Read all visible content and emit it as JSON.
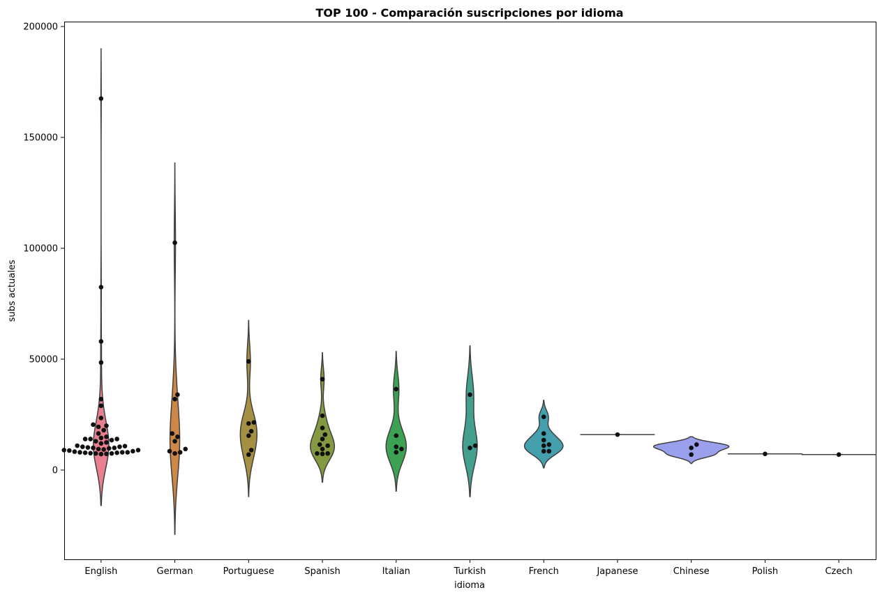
{
  "chart_data": {
    "type": "violin",
    "title": "TOP 100 - Comparación suscripciones por idioma",
    "xlabel": "idioma",
    "ylabel": "subs actuales",
    "ylim": [
      -41000,
      200500
    ],
    "yticks": [
      0,
      50000,
      100000,
      150000,
      200000
    ],
    "yticks_labels": [
      "0",
      "50000",
      "100000",
      "150000",
      "200000"
    ],
    "grid": false,
    "categories": [
      "English",
      "German",
      "Portuguese",
      "Spanish",
      "Italian",
      "Turkish",
      "French",
      "Japanese",
      "Chinese",
      "Polish",
      "Czech"
    ],
    "colors": [
      "#e8808f",
      "#cd8747",
      "#a58f42",
      "#849a42",
      "#3da153",
      "#44a08e",
      "#45a0ae",
      "#4e9fd0",
      "#9ba0ec",
      "#dd8ee4",
      "#e684bb"
    ],
    "violin_range": [
      [
        -16000,
        190000
      ],
      [
        -29000,
        138500
      ],
      [
        -12000,
        67500
      ],
      [
        -5500,
        53000
      ],
      [
        -9500,
        53500
      ],
      [
        -12000,
        56000
      ],
      [
        1000,
        31500
      ],
      [
        16000,
        16000
      ],
      [
        3000,
        15000
      ],
      [
        7300,
        7300
      ],
      [
        7000,
        7000
      ]
    ],
    "values": [
      [
        167500,
        82500,
        58000,
        48500,
        32000,
        29000,
        23500,
        20500,
        20000,
        19500,
        18000,
        16500,
        15000,
        14500,
        14000,
        14000,
        14000,
        13500,
        13000,
        12500,
        12000,
        11000,
        10800,
        10500,
        10500,
        10200,
        10000,
        10000,
        9800,
        9500,
        9300,
        9000,
        9000,
        8800,
        8500,
        8300,
        8000,
        8000,
        8000,
        7800,
        7800,
        7600,
        7500,
        7500,
        7300,
        7200
      ],
      [
        102500,
        34000,
        32000,
        16500,
        15000,
        13000,
        9500,
        8500,
        8000,
        7500
      ],
      [
        49000,
        21500,
        21000,
        17500,
        15500,
        9000,
        7000
      ],
      [
        41000,
        24500,
        19000,
        16000,
        14000,
        11500,
        11000,
        9500,
        7500,
        7500,
        7300
      ],
      [
        36500,
        15500,
        10500,
        9500,
        8000
      ],
      [
        34000,
        11000,
        10000
      ],
      [
        24000,
        16500,
        13500,
        11500,
        11000,
        8500,
        8500
      ],
      [
        16000
      ],
      [
        11500,
        10000,
        7000
      ],
      [
        7300
      ],
      [
        7000
      ]
    ]
  }
}
